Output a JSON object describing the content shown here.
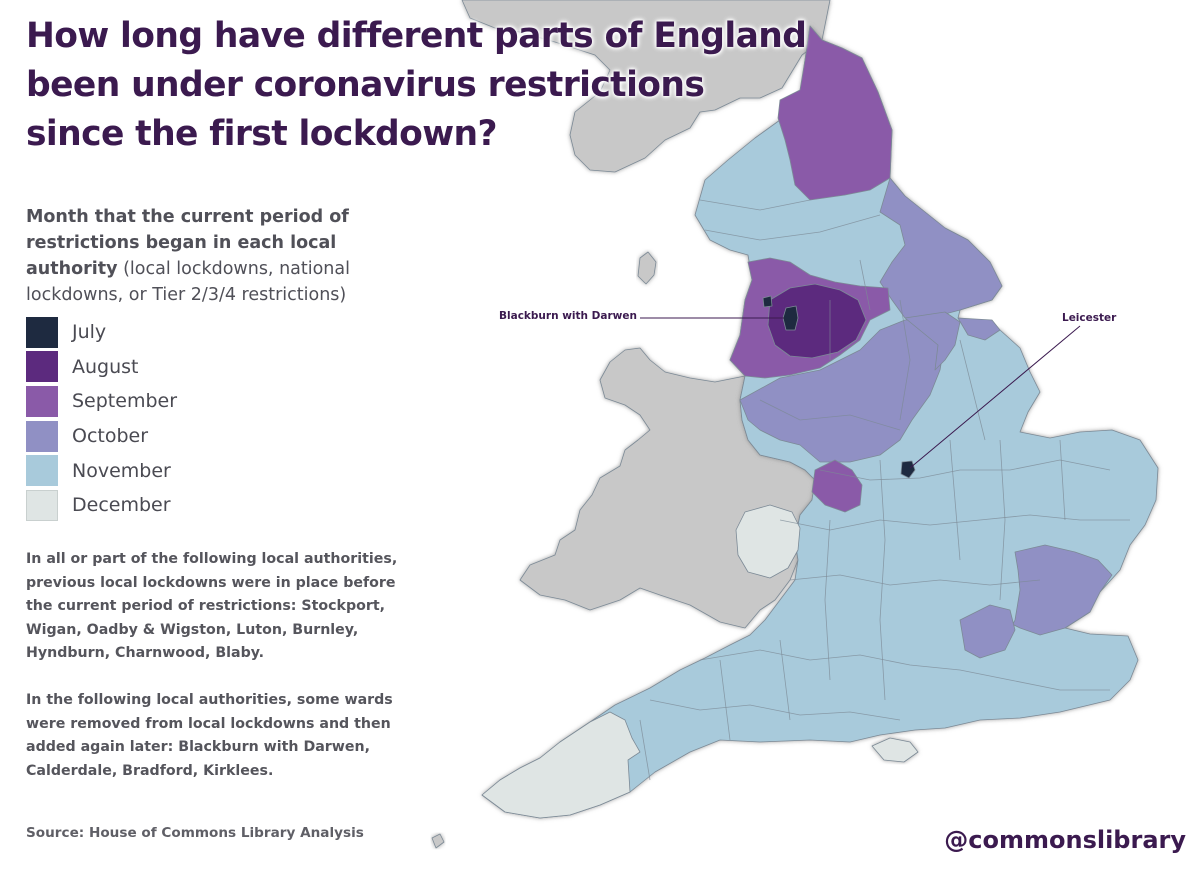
{
  "title_lines": [
    "How long have different parts of England",
    "been under coronavirus restrictions",
    "since the first lockdown?"
  ],
  "legend": {
    "heading_bold": "Month that the current period of restrictions began in each local authority",
    "heading_regular": "(local lockdowns, national lockdowns, or Tier 2/3/4 restrictions)",
    "items": [
      {
        "label": "July",
        "color": "#1e2a40"
      },
      {
        "label": "August",
        "color": "#5c2a7e"
      },
      {
        "label": "September",
        "color": "#8a5aa8"
      },
      {
        "label": "October",
        "color": "#9090c4"
      },
      {
        "label": "November",
        "color": "#a8cadb"
      },
      {
        "label": "December",
        "color": "#dfe5e4"
      }
    ]
  },
  "notes": [
    "In all or part of the following local authorities, previous local lockdowns were in place before the current period of restrictions: Stockport, Wigan, Oadby & Wigston, Luton, Burnley, Hyndburn, Charnwood, Blaby.",
    "In the following local authorities, some wards were removed from local lockdowns and then added again later: Blackburn with Darwen, Calderdale, Bradford, Kirklees."
  ],
  "source": "Source: House of Commons Library Analysis",
  "handle": "@commonslibrary",
  "callouts": [
    {
      "label": "Blackburn with Darwen"
    },
    {
      "label": "Leicester"
    }
  ],
  "map_colors": {
    "land_other": "#c8c8c8",
    "sea": "#ffffff",
    "borders": "#7c8a96"
  }
}
